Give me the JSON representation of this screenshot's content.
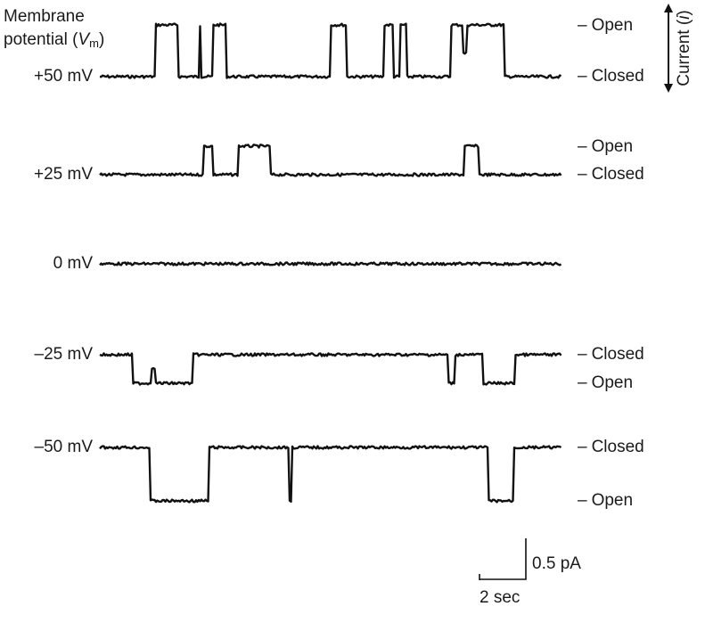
{
  "figure": {
    "title_line1": "Membrane",
    "title_line2": "potential (",
    "title_var": "V",
    "title_sub": "m",
    "title_end": ")",
    "current_axis_label": "Current (",
    "current_axis_var": "i",
    "current_axis_end": ")",
    "dash": "–"
  },
  "traces": [
    {
      "voltage_label": "+50 mV",
      "states": [
        "Open",
        "Closed"
      ],
      "direction": "up",
      "openings": [
        [
          0.12,
          0.17
        ],
        [
          0.215,
          0.22
        ],
        [
          0.245,
          0.275
        ],
        [
          0.5,
          0.535
        ],
        [
          0.615,
          0.635
        ],
        [
          0.65,
          0.665
        ],
        [
          0.76,
          0.875
        ]
      ],
      "brief_spikes": [
        0.79
      ]
    },
    {
      "voltage_label": "+25 mV",
      "states": [
        "Open",
        "Closed"
      ],
      "direction": "up",
      "openings": [
        [
          0.225,
          0.245
        ],
        [
          0.3,
          0.37
        ],
        [
          0.79,
          0.82
        ]
      ],
      "brief_spikes": []
    },
    {
      "voltage_label": "0 mV",
      "states": [],
      "direction": "none",
      "openings": [],
      "brief_spikes": []
    },
    {
      "voltage_label": "–25 mV",
      "states": [
        "Closed",
        "Open"
      ],
      "direction": "down",
      "openings": [
        [
          0.07,
          0.2
        ],
        [
          0.755,
          0.77
        ],
        [
          0.83,
          0.9
        ]
      ],
      "brief_spikes": [
        0.115
      ]
    },
    {
      "voltage_label": "–50 mV",
      "states": [
        "Closed",
        "Open"
      ],
      "direction": "down",
      "openings": [
        [
          0.11,
          0.235
        ],
        [
          0.41,
          0.415
        ],
        [
          0.84,
          0.895
        ]
      ],
      "brief_spikes": []
    }
  ],
  "scale_bar": {
    "current_label": "0.5 pA",
    "time_label": "2 sec"
  }
}
